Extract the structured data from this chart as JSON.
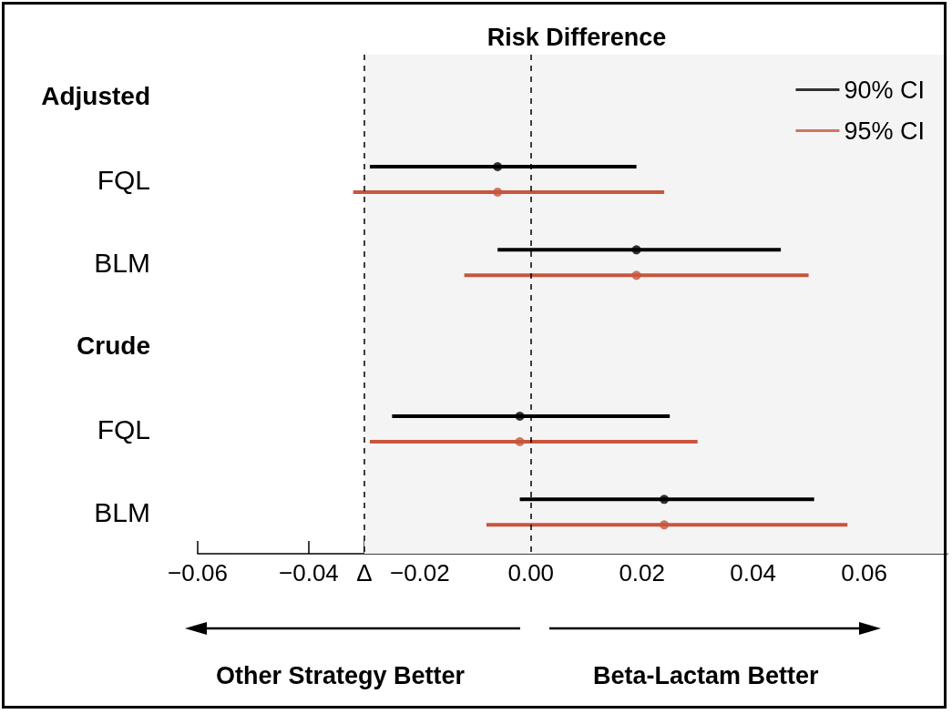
{
  "chart_data": {
    "type": "scatter",
    "orientation": "horizontal",
    "title": "Risk Difference",
    "categories": [
      "Adjusted",
      "FQL",
      "BLM",
      "Crude",
      "FQL",
      "BLM"
    ],
    "series": [
      {
        "name": "90% CI",
        "color": "#000000",
        "values": [
          null,
          -0.006,
          0.019,
          null,
          -0.002,
          0.024
        ],
        "errors": [
          null,
          [
            -0.029,
            0.019
          ],
          [
            -0.006,
            0.045
          ],
          null,
          [
            -0.025,
            0.025
          ],
          [
            -0.002,
            0.051
          ]
        ]
      },
      {
        "name": "95% CI",
        "color": "#c8553d",
        "values": [
          null,
          -0.006,
          0.019,
          null,
          -0.002,
          0.024
        ],
        "errors": [
          null,
          [
            -0.032,
            0.024
          ],
          [
            -0.012,
            0.05
          ],
          null,
          [
            -0.029,
            0.03
          ],
          [
            -0.008,
            0.057
          ]
        ]
      }
    ],
    "xlim": [
      -0.06,
      0.075
    ],
    "xticks": [
      {
        "value": -0.06,
        "label": "−0.06"
      },
      {
        "value": -0.04,
        "label": "−0.04"
      },
      {
        "value": -0.03,
        "label": "Δ"
      },
      {
        "value": -0.02,
        "label": "−0.02"
      },
      {
        "value": 0,
        "label": "0.00"
      },
      {
        "value": 0.02,
        "label": "0.02"
      },
      {
        "value": 0.04,
        "label": "0.04"
      },
      {
        "value": 0.06,
        "label": "0.06"
      }
    ],
    "ref_lines": [
      {
        "axis": "x",
        "value": -0.03,
        "line_style": "dashed",
        "color": "#000000"
      },
      {
        "axis": "x",
        "value": 0,
        "line_style": "dashed",
        "color": "#000000"
      }
    ],
    "bands": [
      {
        "axis": "x",
        "from": -0.03,
        "to": 0.075,
        "color": "#f3f4f3"
      }
    ],
    "annotations": [
      "Other Strategy Better",
      "Beta-Lactam Better"
    ],
    "legend": "top right",
    "grid": false,
    "marker": "circle"
  }
}
